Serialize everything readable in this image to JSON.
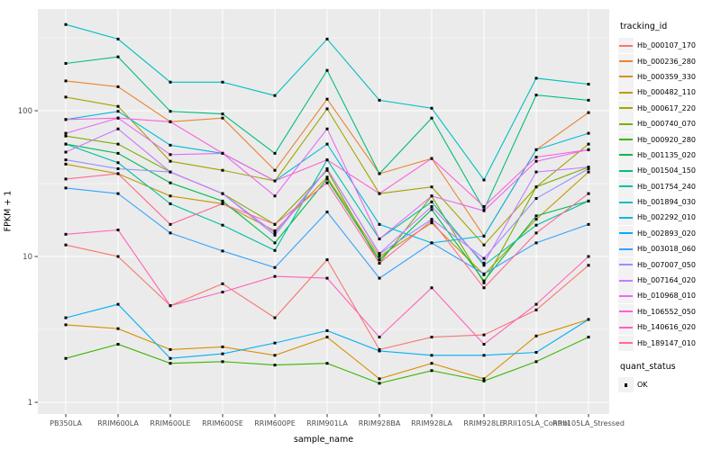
{
  "chart": {
    "y_axis": {
      "title": "FPKM + 1",
      "tick_labels": [
        "100",
        "10",
        "1"
      ]
    },
    "x_axis": {
      "title": "sample_name"
    },
    "legend_tracking": {
      "title": "tracking_id"
    },
    "legend_quant": {
      "title": "quant_status",
      "items": [
        {
          "label": "OK",
          "marker": "black-square"
        }
      ]
    },
    "colors": {
      "panel_background": "#EBEBEB",
      "grid": "#FFFFFF",
      "axis_text": "#4D4D4D",
      "tick_mark": "#333333",
      "point": "#000000",
      "legend_key_background": "#F2F2F2"
    }
  },
  "chart_data": {
    "type": "line",
    "title": "",
    "xlabel": "sample_name",
    "ylabel": "FPKM + 1",
    "y_scale": "log10",
    "y_ticks": [
      1,
      10,
      100
    ],
    "y_minor_ticks": [
      3.162,
      31.62,
      316.2
    ],
    "ylim_log10": [
      -0.08,
      2.7
    ],
    "grid": true,
    "legend_position": "right",
    "point_marker": "filled-black-square",
    "categories": [
      "PB350LA",
      "RRIM600LA",
      "RRIM600LE",
      "RRIM600SE",
      "RRIM600PE",
      "RRIM901LA",
      "RRIM928BA",
      "RRIM928LA",
      "RRIM928LE",
      "RRII105LA_Control",
      "RRII105LA_Stressed"
    ],
    "series": [
      {
        "name": "Hb_000107_170",
        "color": "#F8766D",
        "values": [
          12,
          10,
          4.6,
          6.5,
          3.8,
          9.5,
          2.3,
          2.8,
          2.9,
          4.3,
          8.7
        ]
      },
      {
        "name": "Hb_000236_280",
        "color": "#EA8331",
        "values": [
          160,
          146,
          84,
          89,
          39,
          120,
          37,
          47,
          13.8,
          54,
          97
        ]
      },
      {
        "name": "Hb_000359_330",
        "color": "#D89000",
        "values": [
          3.4,
          3.2,
          2.3,
          2.4,
          2.1,
          2.8,
          1.45,
          1.85,
          1.45,
          2.85,
          3.7
        ]
      },
      {
        "name": "Hb_000482_110",
        "color": "#C09B00",
        "values": [
          43,
          37,
          26,
          23,
          15,
          35,
          10,
          17,
          7.5,
          18,
          38
        ]
      },
      {
        "name": "Hb_000617_220",
        "color": "#A3A500",
        "values": [
          124,
          107,
          45,
          39,
          33,
          103,
          27,
          30,
          12,
          30,
          59
        ]
      },
      {
        "name": "Hb_000740_070",
        "color": "#7CAE00",
        "values": [
          67,
          59,
          38,
          27,
          16.6,
          39,
          9,
          26,
          6.6,
          30,
          41
        ]
      },
      {
        "name": "Hb_000920_280",
        "color": "#39B600",
        "values": [
          2.0,
          2.5,
          1.85,
          1.9,
          1.8,
          1.85,
          1.35,
          1.65,
          1.4,
          1.9,
          2.8
        ]
      },
      {
        "name": "Hb_001135_020",
        "color": "#00BB4E",
        "values": [
          59,
          51,
          32,
          24,
          12.4,
          34,
          9.5,
          21,
          6.8,
          19,
          24
        ]
      },
      {
        "name": "Hb_001504_150",
        "color": "#00BF7D",
        "values": [
          211,
          234,
          99,
          95,
          51,
          189,
          37,
          89,
          21,
          128,
          118
        ]
      },
      {
        "name": "Hb_001754_240",
        "color": "#00C1A3",
        "values": [
          59,
          44,
          23,
          16.4,
          11,
          46,
          13.2,
          23.7,
          8.7,
          16.4,
          24
        ]
      },
      {
        "name": "Hb_001894_030",
        "color": "#00BFC4",
        "values": [
          390,
          310,
          157,
          157,
          127,
          310,
          118,
          104,
          33.5,
          167,
          152
        ]
      },
      {
        "name": "Hb_002292_010",
        "color": "#00BAE0",
        "values": [
          87,
          99,
          58,
          51,
          33,
          59,
          16.6,
          12.4,
          13.8,
          54,
          70
        ]
      },
      {
        "name": "Hb_002893_020",
        "color": "#00B0F6",
        "values": [
          3.8,
          4.7,
          2.0,
          2.15,
          2.55,
          3.1,
          2.25,
          2.1,
          2.1,
          2.2,
          3.7
        ]
      },
      {
        "name": "Hb_003018_060",
        "color": "#35A2FF",
        "values": [
          29.5,
          27,
          14.5,
          10.9,
          8.4,
          20.2,
          7.1,
          12.4,
          7.6,
          12.4,
          16.6
        ]
      },
      {
        "name": "Hb_007007_050",
        "color": "#9590FF",
        "values": [
          46,
          40,
          38,
          27,
          14,
          40,
          10.4,
          18,
          9.7,
          25,
          40
        ]
      },
      {
        "name": "Hb_007164_020",
        "color": "#C77CFF",
        "values": [
          52,
          75,
          38,
          27,
          14.5,
          40,
          10.5,
          22,
          9,
          38,
          41
        ]
      },
      {
        "name": "Hb_010968_010",
        "color": "#E76BF3",
        "values": [
          70,
          89,
          50,
          51,
          26,
          75,
          13.2,
          26,
          20.6,
          45,
          54
        ]
      },
      {
        "name": "Hb_106552_050",
        "color": "#FA62DB",
        "values": [
          87,
          89,
          84,
          51,
          33,
          46,
          27,
          47,
          22,
          48,
          54
        ]
      },
      {
        "name": "Hb_140616_020",
        "color": "#FF62BC",
        "values": [
          14.2,
          15.2,
          4.6,
          5.7,
          7.3,
          7.1,
          2.8,
          6.1,
          2.5,
          4.7,
          10
        ]
      },
      {
        "name": "Hb_189147_010",
        "color": "#FF6A98",
        "values": [
          34,
          37,
          16.6,
          23,
          16.6,
          32,
          9,
          17.6,
          6.1,
          14.5,
          27
        ]
      }
    ]
  }
}
